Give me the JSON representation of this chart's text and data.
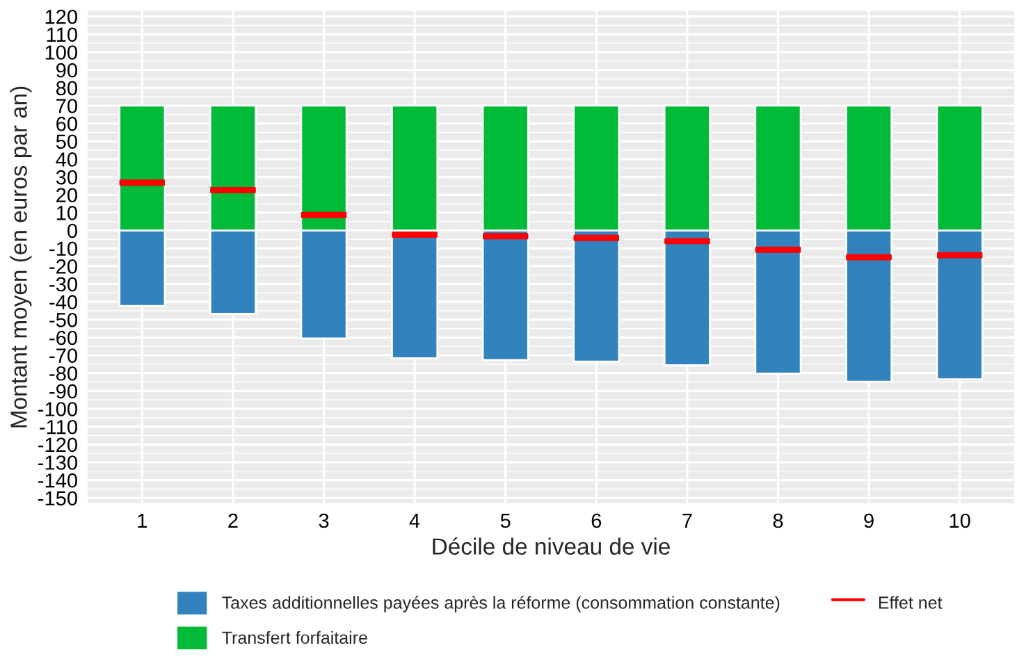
{
  "chart_data": {
    "type": "bar",
    "stacked": true,
    "xlabel": "Décile de niveau de vie",
    "ylabel": "Montant moyen (en euros par an)",
    "categories": [
      "1",
      "2",
      "3",
      "4",
      "5",
      "6",
      "7",
      "8",
      "9",
      "10"
    ],
    "series": [
      {
        "name": "Taxes additionnelles payées après la réforme (consommation constante)",
        "color": "#3182bd",
        "values": [
          -42.3,
          -46.7,
          -60.6,
          -71.7,
          -72.7,
          -73.5,
          -75.6,
          -80.3,
          -84.8,
          -83.5
        ]
      },
      {
        "name": "Transfert forfaitaire",
        "color": "#00ba38",
        "values": [
          70,
          70,
          70,
          70,
          70,
          70,
          70,
          70,
          70,
          70
        ]
      },
      {
        "name": "Effet net",
        "type": "box",
        "color": "#ff0000",
        "boxes": [
          {
            "low": 26.8,
            "q1": 26.8,
            "median": 26.8,
            "q3": 26.8,
            "high": 26.8
          },
          {
            "low": 22.6,
            "q1": 22.6,
            "median": 22.6,
            "q3": 22.6,
            "high": 22.6
          },
          {
            "low": 8.7,
            "q1": 8.7,
            "median": 8.7,
            "q3": 8.7,
            "high": 8.7
          },
          {
            "low": -2.4,
            "q1": -2.4,
            "median": -2.4,
            "q3": -2.4,
            "high": -2.4
          },
          {
            "low": -3.2,
            "q1": -3.2,
            "median": -3.2,
            "q3": -3.2,
            "high": -3.2
          },
          {
            "low": -4.2,
            "q1": -4.2,
            "median": -4.2,
            "q3": -4.2,
            "high": -4.2
          },
          {
            "low": -6,
            "q1": -6,
            "median": -6,
            "q3": -6,
            "high": -6
          },
          {
            "low": -10.8,
            "q1": -10.8,
            "median": -10.8,
            "q3": -10.8,
            "high": -10.8
          },
          {
            "low": -15,
            "q1": -15,
            "median": -15,
            "q3": -15,
            "high": -15
          },
          {
            "low": -13.9,
            "q1": -13.9,
            "median": -13.9,
            "q3": -13.9,
            "high": -13.9
          }
        ]
      }
    ],
    "ylim": [
      -153,
      123
    ],
    "yticks": [
      -150,
      -140,
      -130,
      -120,
      -110,
      -100,
      -90,
      -80,
      -70,
      -60,
      -50,
      -40,
      -30,
      -20,
      -10,
      0,
      10,
      20,
      30,
      40,
      50,
      60,
      70,
      80,
      90,
      100,
      110,
      120
    ],
    "grid": true,
    "legend": "bottom"
  }
}
